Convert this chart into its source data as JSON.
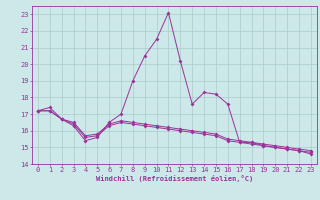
{
  "title": "",
  "xlabel": "Windchill (Refroidissement éolien,°C)",
  "background_color": "#cce8e8",
  "grid_color": "#aacccc",
  "line_color": "#993399",
  "xlim": [
    -0.5,
    23.5
  ],
  "ylim": [
    14,
    23.5
  ],
  "yticks": [
    14,
    15,
    16,
    17,
    18,
    19,
    20,
    21,
    22,
    23
  ],
  "xticks": [
    0,
    1,
    2,
    3,
    4,
    5,
    6,
    7,
    8,
    9,
    10,
    11,
    12,
    13,
    14,
    15,
    16,
    17,
    18,
    19,
    20,
    21,
    22,
    23
  ],
  "line1_x": [
    0,
    1,
    2,
    3,
    4,
    5,
    6,
    7,
    8,
    9,
    10,
    11,
    12,
    13,
    14,
    15,
    16,
    17,
    18,
    19,
    20,
    21,
    22,
    23
  ],
  "line1_y": [
    17.2,
    17.4,
    16.7,
    16.3,
    15.4,
    15.6,
    16.5,
    17.0,
    19.0,
    20.5,
    21.5,
    23.1,
    20.2,
    17.6,
    18.3,
    18.2,
    17.6,
    15.3,
    15.3,
    15.1,
    15.0,
    14.9,
    14.8,
    14.6
  ],
  "line2_x": [
    0,
    1,
    2,
    3,
    4,
    5,
    6,
    7,
    8,
    9,
    10,
    11,
    12,
    13,
    14,
    15,
    16,
    17,
    18,
    19,
    20,
    21,
    22,
    23
  ],
  "line2_y": [
    17.2,
    17.2,
    16.7,
    16.4,
    15.6,
    15.7,
    16.3,
    16.5,
    16.4,
    16.3,
    16.2,
    16.1,
    16.0,
    15.9,
    15.8,
    15.7,
    15.4,
    15.3,
    15.2,
    15.1,
    15.0,
    14.9,
    14.8,
    14.7
  ],
  "line3_x": [
    0,
    1,
    2,
    3,
    4,
    5,
    6,
    7,
    8,
    9,
    10,
    11,
    12,
    13,
    14,
    15,
    16,
    17,
    18,
    19,
    20,
    21,
    22,
    23
  ],
  "line3_y": [
    17.2,
    17.2,
    16.7,
    16.5,
    15.7,
    15.8,
    16.4,
    16.6,
    16.5,
    16.4,
    16.3,
    16.2,
    16.1,
    16.0,
    15.9,
    15.8,
    15.5,
    15.4,
    15.3,
    15.2,
    15.1,
    15.0,
    14.9,
    14.8
  ],
  "tick_fontsize": 5,
  "xlabel_fontsize": 5,
  "marker_size": 2
}
